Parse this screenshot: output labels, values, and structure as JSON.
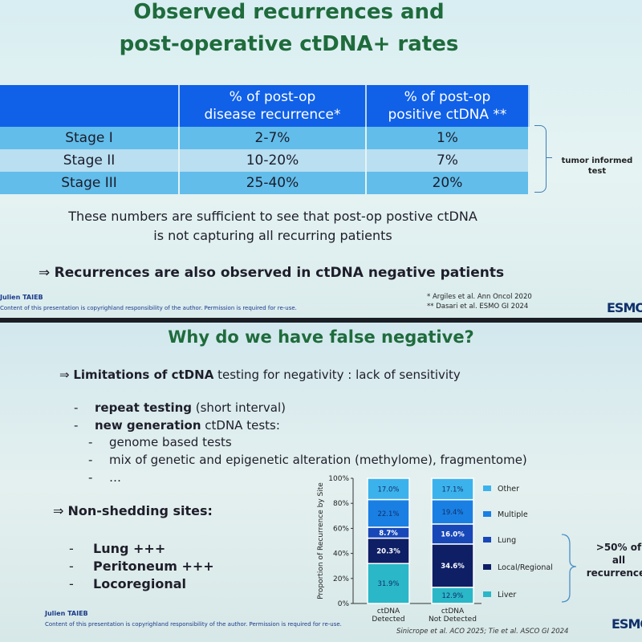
{
  "slide1": {
    "title_line1": "Observed recurrences and",
    "title_line2": "post-operative ctDNA+ rates",
    "table": {
      "headers": [
        "",
        "% of post-op disease recurrence*",
        "% of post-op positive ctDNA **"
      ],
      "header_lines": [
        [
          "",
          ""
        ],
        [
          "% of post-op",
          "disease recurrence*"
        ],
        [
          "% of post-op",
          "positive ctDNA **"
        ]
      ],
      "rows": [
        [
          "Stage I",
          "2-7%",
          "1%"
        ],
        [
          "Stage II",
          "10-20%",
          "7%"
        ],
        [
          "Stage III",
          "25-40%",
          "20%"
        ]
      ]
    },
    "brace_label_line1": "tumor informed",
    "brace_label_line2": "test",
    "paragraph_line1": "These numbers are sufficient to see that post-op postive ctDNA",
    "paragraph_line2": "is not capturing all recurring patients",
    "arrow": "⇒",
    "conclusion": "Recurrences are also observed in ctDNA negative patients",
    "author": "Julien TAIEB",
    "copyright": "Content of this presentation is copyrighland responsibility of the author. Permission is required for re-use.",
    "ref1": "* Argiles et al. Ann Oncol 2020",
    "ref2": "** Dasari et al. ESMO GI 2024",
    "logo": "ESMO"
  },
  "slide2": {
    "title": "Why do we have false negative?",
    "arrow": "⇒",
    "limit_bold": "Limitations of ctDNA",
    "limit_rest": " testing for negativity : lack of sensitivity",
    "b1_bold": "repeat testing",
    "b1_rest": " (short interval)",
    "b2_bold": "new generation",
    "b2_rest": " ctDNA tests:",
    "sub1": "genome based tests",
    "sub2": "mix of genetic and epigenetic alteration (methylome), fragmentome)",
    "sub3": "…",
    "dash": "-",
    "nonshed": "Non-shedding sites:",
    "sites": [
      "Lung +++",
      "Peritoneum +++",
      "Locoregional"
    ],
    "author": "Julien TAIEB",
    "copyright": "Content of this presentation is copyrighland responsibility of the author. Permission is required for re-use.",
    "citations": "Sinicrope et al. ACO 2025; Tie et al. ASCO GI 2024",
    "logo": "ESMO",
    "group_label_line1": ">50% of",
    "group_label_line2": "all recurrences"
  },
  "chart_data": {
    "type": "bar",
    "stacked": true,
    "ylabel": "Proportion of Recurrence by Site",
    "ylim": [
      0,
      100
    ],
    "yticks": [
      "0%",
      "20%",
      "40%",
      "60%",
      "80%",
      "100%"
    ],
    "categories": [
      "ctDNA\nDetected",
      "ctDNA\nNot Detected"
    ],
    "category_lines": [
      [
        "ctDNA",
        "Detected"
      ],
      [
        "ctDNA",
        "Not Detected"
      ]
    ],
    "series": [
      {
        "name": "Liver",
        "values": [
          31.9,
          12.9
        ],
        "labels": [
          "31.9%",
          "12.9%"
        ],
        "color": "#2ab7c7"
      },
      {
        "name": "Local/Regional",
        "values": [
          20.3,
          34.6
        ],
        "labels": [
          "20.3%",
          "34.6%"
        ],
        "color": "#0e1f66"
      },
      {
        "name": "Lung",
        "values": [
          8.7,
          16.0
        ],
        "labels": [
          "8.7%",
          "16.0%"
        ],
        "color": "#1847b8"
      },
      {
        "name": "Multiple",
        "values": [
          22.1,
          19.4
        ],
        "labels": [
          "22.1%",
          "19.4%"
        ],
        "color": "#1a7fe2"
      },
      {
        "name": "Other",
        "values": [
          17.0,
          17.1
        ],
        "labels": [
          "17.0%",
          "17.1%"
        ],
        "color": "#3cb2ec"
      }
    ],
    "legend_order": [
      "Other",
      "Multiple",
      "Lung",
      "Local/Regional",
      "Liver"
    ],
    "legend_position": "right"
  }
}
